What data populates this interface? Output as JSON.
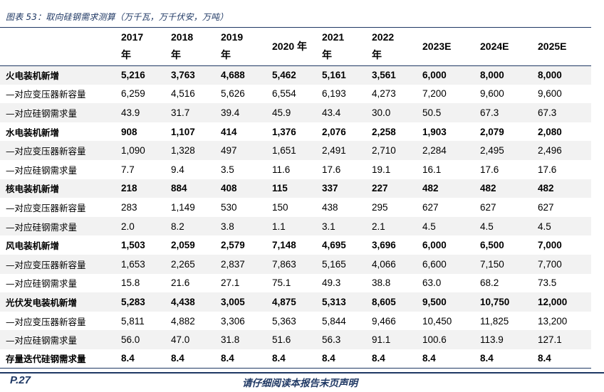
{
  "caption": "图表 53：取向硅钢需求测算（万千瓦，万千伏安，万吨）",
  "table": {
    "headers": [
      {
        "line1": "",
        "line2": ""
      },
      {
        "line1": "2017",
        "line2": "年"
      },
      {
        "line1": "2018",
        "line2": "年"
      },
      {
        "line1": "2019",
        "line2": "年"
      },
      {
        "line1": "2020 年",
        "line2": ""
      },
      {
        "line1": "2021",
        "line2": "年"
      },
      {
        "line1": "2022",
        "line2": "年"
      },
      {
        "line1": "2023E",
        "line2": ""
      },
      {
        "line1": "2024E",
        "line2": ""
      },
      {
        "line1": "2025E",
        "line2": ""
      }
    ],
    "rows": [
      {
        "label": "火电装机新增",
        "values": [
          "5,216",
          "3,763",
          "4,688",
          "5,462",
          "5,161",
          "3,561",
          "6,000",
          "8,000",
          "8,000"
        ],
        "bold": true,
        "shade": true
      },
      {
        "label": "—对应变压器新容量",
        "values": [
          "6,259",
          "4,516",
          "5,626",
          "6,554",
          "6,193",
          "4,273",
          "7,200",
          "9,600",
          "9,600"
        ],
        "bold": false,
        "shade": false
      },
      {
        "label": "—对应硅钢需求量",
        "values": [
          "43.9",
          "31.7",
          "39.4",
          "45.9",
          "43.4",
          "30.0",
          "50.5",
          "67.3",
          "67.3"
        ],
        "bold": false,
        "shade": true
      },
      {
        "label": "水电装机新增",
        "values": [
          "908",
          "1,107",
          "414",
          "1,376",
          "2,076",
          "2,258",
          "1,903",
          "2,079",
          "2,080"
        ],
        "bold": true,
        "shade": false
      },
      {
        "label": "—对应变压器新容量",
        "values": [
          "1,090",
          "1,328",
          "497",
          "1,651",
          "2,491",
          "2,710",
          "2,284",
          "2,495",
          "2,496"
        ],
        "bold": false,
        "shade": true
      },
      {
        "label": "—对应硅钢需求量",
        "values": [
          "7.7",
          "9.4",
          "3.5",
          "11.6",
          "17.6",
          "19.1",
          "16.1",
          "17.6",
          "17.6"
        ],
        "bold": false,
        "shade": false
      },
      {
        "label": "核电装机新增",
        "values": [
          "218",
          "884",
          "408",
          "115",
          "337",
          "227",
          "482",
          "482",
          "482"
        ],
        "bold": true,
        "shade": true
      },
      {
        "label": "—对应变压器新容量",
        "values": [
          "283",
          "1,149",
          "530",
          "150",
          "438",
          "295",
          "627",
          "627",
          "627"
        ],
        "bold": false,
        "shade": false
      },
      {
        "label": "—对应硅钢需求量",
        "values": [
          "2.0",
          "8.2",
          "3.8",
          "1.1",
          "3.1",
          "2.1",
          "4.5",
          "4.5",
          "4.5"
        ],
        "bold": false,
        "shade": true
      },
      {
        "label": "风电装机新增",
        "values": [
          "1,503",
          "2,059",
          "2,579",
          "7,148",
          "4,695",
          "3,696",
          "6,000",
          "6,500",
          "7,000"
        ],
        "bold": true,
        "shade": false
      },
      {
        "label": "—对应变压器新容量",
        "values": [
          "1,653",
          "2,265",
          "2,837",
          "7,863",
          "5,165",
          "4,066",
          "6,600",
          "7,150",
          "7,700"
        ],
        "bold": false,
        "shade": true
      },
      {
        "label": "—对应硅钢需求量",
        "values": [
          "15.8",
          "21.6",
          "27.1",
          "75.1",
          "49.3",
          "38.8",
          "63.0",
          "68.2",
          "73.5"
        ],
        "bold": false,
        "shade": false
      },
      {
        "label": "光伏发电装机新增",
        "values": [
          "5,283",
          "4,438",
          "3,005",
          "4,875",
          "5,313",
          "8,605",
          "9,500",
          "10,750",
          "12,000"
        ],
        "bold": true,
        "shade": true
      },
      {
        "label": "—对应变压器新容量",
        "values": [
          "5,811",
          "4,882",
          "3,306",
          "5,363",
          "5,844",
          "9,466",
          "10,450",
          "11,825",
          "13,200"
        ],
        "bold": false,
        "shade": false
      },
      {
        "label": "—对应硅钢需求量",
        "values": [
          "56.0",
          "47.0",
          "31.8",
          "51.6",
          "56.3",
          "91.1",
          "100.6",
          "113.9",
          "127.1"
        ],
        "bold": false,
        "shade": true
      },
      {
        "label": "存量迭代硅钢需求量",
        "values": [
          "8.4",
          "8.4",
          "8.4",
          "8.4",
          "8.4",
          "8.4",
          "8.4",
          "8.4",
          "8.4"
        ],
        "bold": true,
        "shade": false
      }
    ]
  },
  "footer": {
    "page": "P.27",
    "disclaimer": "请仔细阅读本报告末页声明"
  }
}
